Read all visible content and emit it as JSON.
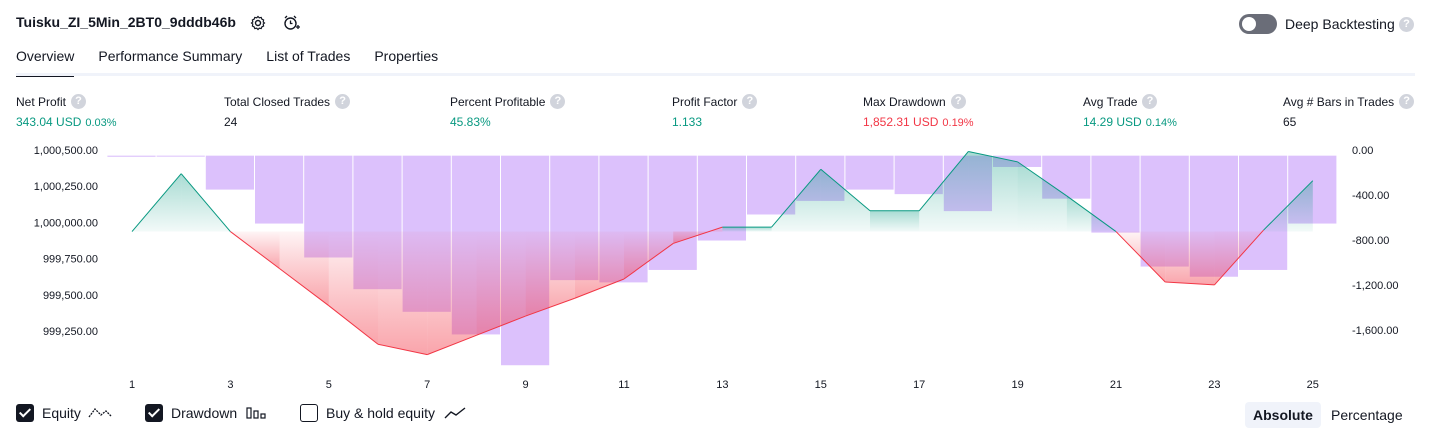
{
  "header": {
    "title": "Tuisku_ZI_5Min_2BT0_9dddb46b",
    "deep_backtesting_label": "Deep Backtesting",
    "help_glyph": "?"
  },
  "tabs": [
    {
      "label": "Overview",
      "active": true
    },
    {
      "label": "Performance Summary",
      "active": false
    },
    {
      "label": "List of Trades",
      "active": false
    },
    {
      "label": "Properties",
      "active": false
    }
  ],
  "metrics": [
    {
      "label": "Net Profit",
      "value": "343.04 USD",
      "pct": "0.03%",
      "color": "#089981"
    },
    {
      "label": "Total Closed Trades",
      "value": "24",
      "pct": "",
      "color": "#131722"
    },
    {
      "label": "Percent Profitable",
      "value": "45.83%",
      "pct": "",
      "color": "#089981"
    },
    {
      "label": "Profit Factor",
      "value": "1.133",
      "pct": "",
      "color": "#089981"
    },
    {
      "label": "Max Drawdown",
      "value": "1,852.31 USD",
      "pct": "0.19%",
      "color": "#f23645"
    },
    {
      "label": "Avg Trade",
      "value": "14.29 USD",
      "pct": "0.14%",
      "color": "#089981"
    },
    {
      "label": "Avg # Bars in Trades",
      "value": "65",
      "pct": "",
      "color": "#131722"
    }
  ],
  "chart_data": {
    "type": "line",
    "x_ticks": [
      "1",
      "3",
      "5",
      "7",
      "9",
      "11",
      "13",
      "15",
      "17",
      "19",
      "21",
      "23",
      "25"
    ],
    "left_ticks": [
      "1,000,500.00",
      "1,000,250.00",
      "1,000,000.00",
      "999,750.00",
      "999,500.00",
      "999,250.00"
    ],
    "right_ticks": [
      "0.00",
      "-400.00",
      "-800.00",
      "-1,200.00",
      "-1,600.00"
    ],
    "equity": {
      "name": "Equity",
      "baseline": 1000000,
      "x": [
        1,
        2,
        3,
        4,
        5,
        6,
        7,
        8,
        9,
        10,
        11,
        12,
        13,
        14,
        15,
        16,
        17,
        18,
        19,
        20,
        21,
        22,
        23,
        24,
        25
      ],
      "values": [
        1000000,
        1000390,
        1000000,
        999750,
        999500,
        999240,
        999170,
        999300,
        999430,
        999550,
        999680,
        999920,
        1000030,
        1000030,
        1000420,
        1000140,
        1000140,
        1000540,
        1000470,
        1000240,
        1000000,
        999660,
        999640,
        1000010,
        1000343
      ],
      "color_up": "#089981",
      "color_down": "#f23645"
    },
    "drawdown": {
      "name": "Drawdown",
      "x": [
        1,
        2,
        3,
        4,
        5,
        6,
        7,
        8,
        9,
        10,
        11,
        12,
        13,
        14,
        15,
        16,
        17,
        18,
        19,
        20,
        21,
        22,
        23,
        24,
        25
      ],
      "values": [
        -10,
        0,
        -300,
        -600,
        -900,
        -1180,
        -1380,
        -1580,
        -1852,
        -1100,
        -1120,
        -1010,
        -750,
        -520,
        -400,
        -300,
        -340,
        -490,
        -100,
        -380,
        -680,
        -980,
        -1070,
        -1010,
        -600
      ],
      "color": "#d6b6fb"
    },
    "left_range": [
      999100,
      1000550
    ],
    "right_range": [
      -1850,
      50
    ]
  },
  "legend": {
    "equity_label": "Equity",
    "drawdown_label": "Drawdown",
    "buyhold_label": "Buy & hold equity"
  },
  "view_toggle": {
    "absolute": "Absolute",
    "percentage": "Percentage"
  }
}
